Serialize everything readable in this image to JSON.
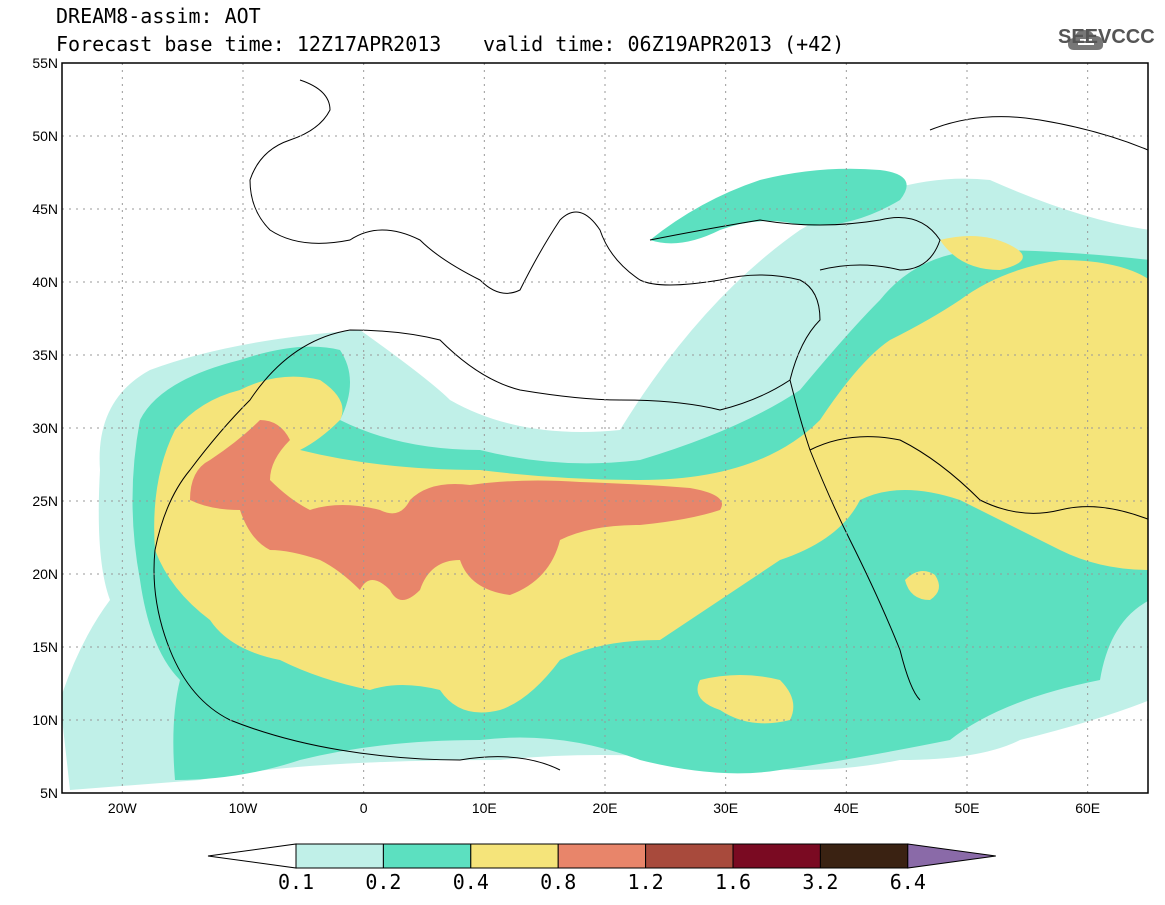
{
  "header": {
    "title": "DREAM8-assim: AOT",
    "base_time": "Forecast base time: 12Z17APR2013",
    "valid_time": "valid time: 06Z19APR2013 (+42)",
    "logo_text": "SEEVCCC",
    "logo_icon": "cloud-icon"
  },
  "map": {
    "lon_range": [
      -25,
      65
    ],
    "lat_range": [
      5,
      55
    ],
    "x_ticks": [
      "20W",
      "10W",
      "0",
      "10E",
      "20E",
      "30E",
      "40E",
      "50E",
      "60E"
    ],
    "y_ticks": [
      "55N",
      "50N",
      "45N",
      "40N",
      "35N",
      "30N",
      "25N",
      "20N",
      "15N",
      "10N",
      "5N"
    ],
    "grid": "dotted"
  },
  "legend": {
    "levels": [
      "0.1",
      "0.2",
      "0.4",
      "0.8",
      "1.2",
      "1.6",
      "3.2",
      "6.4"
    ],
    "colors": [
      "#ffffff",
      "#c0f0e8",
      "#5ce0c0",
      "#f5e47a",
      "#e8856a",
      "#a84a3c",
      "#7a0a22",
      "#3a2212",
      "#8a6aa8"
    ]
  }
}
